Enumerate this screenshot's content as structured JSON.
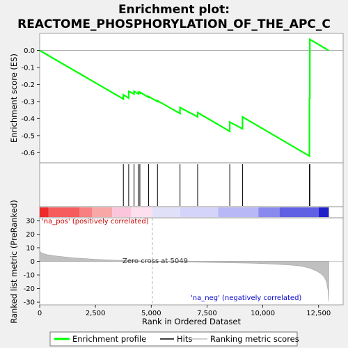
{
  "chart_data": {
    "type": "line",
    "title_line1": "Enrichment plot:",
    "title_line2": "REACTOME_PHOSPHORYLATION_OF_THE_APC_C",
    "es_panel": {
      "ylabel": "Enrichment score (ES)",
      "ylim": [
        -0.66,
        0.1
      ],
      "yticks": [
        0.0,
        -0.1,
        -0.2,
        -0.3,
        -0.4,
        -0.5,
        -0.6
      ],
      "ytick_labels": [
        "0.0",
        "-0.1",
        "-0.2",
        "-0.3",
        "-0.4",
        "-0.5",
        "-0.6"
      ],
      "series": [
        {
          "name": "Enrichment profile",
          "color": "#00ff00",
          "x": [
            0,
            3750,
            3750,
            3990,
            3990,
            4230,
            4230,
            4420,
            4420,
            4490,
            4490,
            4880,
            4880,
            5280,
            5280,
            6290,
            6290,
            7080,
            7080,
            8520,
            8520,
            9090,
            9090,
            12090,
            12090,
            12110,
            12110,
            12950
          ],
          "y": [
            0.0,
            -0.285,
            -0.26,
            -0.28,
            -0.24,
            -0.255,
            -0.24,
            -0.255,
            -0.245,
            -0.25,
            -0.245,
            -0.275,
            -0.27,
            -0.3,
            -0.295,
            -0.37,
            -0.335,
            -0.39,
            -0.365,
            -0.475,
            -0.42,
            -0.46,
            -0.39,
            -0.62,
            -0.28,
            -0.285,
            0.065,
            0.0
          ]
        }
      ]
    },
    "hits": {
      "x": [
        3750,
        3990,
        4230,
        4420,
        4490,
        4880,
        5280,
        6290,
        7080,
        8520,
        9090,
        12090,
        12110
      ]
    },
    "ranked_panel": {
      "ylabel": "Ranked list metric (PreRanked)",
      "ylim": [
        -32,
        32
      ],
      "yticks": [
        30,
        20,
        10,
        0,
        -10,
        -20,
        -30
      ],
      "ytick_labels": [
        "30",
        "20",
        "10",
        "0",
        "-10",
        "-20",
        "-30"
      ],
      "xlabel": "Rank in Ordered Dataset",
      "xlim": [
        0,
        13600
      ],
      "xticks": [
        0,
        2500,
        5000,
        7500,
        10000,
        12500
      ],
      "xtick_labels": [
        "0",
        "2,500",
        "5,000",
        "7,500",
        "10,000",
        "12,500"
      ],
      "metric_x": [
        0,
        50,
        300,
        800,
        1500,
        2500,
        3500,
        4500,
        5049,
        6500,
        8000,
        9500,
        10500,
        11200,
        11700,
        12100,
        12400,
        12600,
        12750,
        12850,
        12930,
        12960
      ],
      "metric_y": [
        8.0,
        6.5,
        5.0,
        3.8,
        2.6,
        1.5,
        0.8,
        0.3,
        0.0,
        -0.5,
        -0.9,
        -1.4,
        -2.0,
        -2.7,
        -3.5,
        -5.0,
        -7.0,
        -9.0,
        -11.5,
        -15.0,
        -22.0,
        -29.5
      ],
      "zero_cross_label": "Zero cross at 5049",
      "zero_cross_x": 5049,
      "pos_label": "'na_pos' (positively correlated)",
      "neg_label": "'na_neg' (negatively correlated)",
      "pos_color": "#cc0000",
      "neg_color": "#0000cc"
    },
    "heat_bar": {
      "segments": [
        {
          "x0": 0,
          "x1": 400,
          "color": "#ee2a2a"
        },
        {
          "x0": 400,
          "x1": 1800,
          "color": "#f65c5c"
        },
        {
          "x0": 1800,
          "x1": 2350,
          "color": "#f88080"
        },
        {
          "x0": 2350,
          "x1": 3250,
          "color": "#f9a6a6"
        },
        {
          "x0": 3250,
          "x1": 4100,
          "color": "#fbc6dc"
        },
        {
          "x0": 4100,
          "x1": 5049,
          "color": "#fde0ee"
        },
        {
          "x0": 5049,
          "x1": 6300,
          "color": "#e0e0f8"
        },
        {
          "x0": 6300,
          "x1": 8000,
          "color": "#d4d4fa"
        },
        {
          "x0": 8000,
          "x1": 9800,
          "color": "#b8b8f6"
        },
        {
          "x0": 9800,
          "x1": 10750,
          "color": "#8a8aee"
        },
        {
          "x0": 10750,
          "x1": 12500,
          "color": "#6060e4"
        },
        {
          "x0": 12500,
          "x1": 12960,
          "color": "#2020c8"
        }
      ]
    },
    "legend": {
      "entries": [
        {
          "label": "Enrichment profile",
          "color": "#00ff00"
        },
        {
          "label": "Hits",
          "color": "#000000"
        },
        {
          "label": "Ranking metric scores",
          "color": "#c0c0c0"
        }
      ]
    }
  }
}
